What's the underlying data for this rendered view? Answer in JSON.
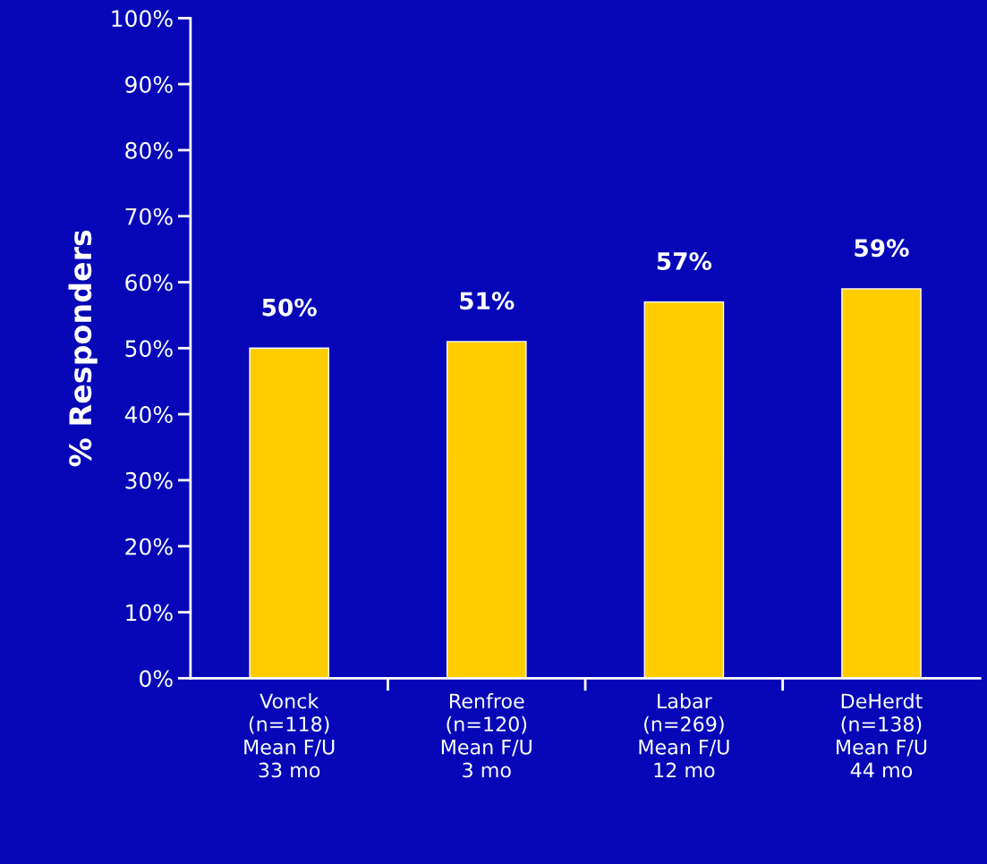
{
  "chart_data": {
    "type": "bar",
    "ylabel": "% Responders",
    "categories": [
      "Vonck\n(n=118)\nMean F/U\n33 mo",
      "Renfroe\n(n=120)\nMean F/U\n3 mo",
      "Labar\n(n=269)\nMean F/U\n12 mo",
      "DeHerdt\n(n=138)\nMean F/U\n44 mo"
    ],
    "values": [
      50,
      51,
      57,
      59
    ],
    "color": "#ffcc00",
    "value_labels": [
      "50%",
      "51%",
      "57%",
      "59%"
    ],
    "ylim": [
      0,
      100
    ],
    "yticks": [
      {
        "value": 0,
        "label": "0%"
      },
      {
        "value": 10,
        "label": "10%"
      },
      {
        "value": 20,
        "label": "20%"
      },
      {
        "value": 30,
        "label": "30%"
      },
      {
        "value": 40,
        "label": "40%"
      },
      {
        "value": 50,
        "label": "50%"
      },
      {
        "value": 60,
        "label": "60%"
      },
      {
        "value": 70,
        "label": "70%"
      },
      {
        "value": 80,
        "label": "80%"
      },
      {
        "value": 90,
        "label": "90%"
      },
      {
        "value": 100,
        "label": "100%"
      }
    ],
    "grid": false,
    "legend": false
  }
}
